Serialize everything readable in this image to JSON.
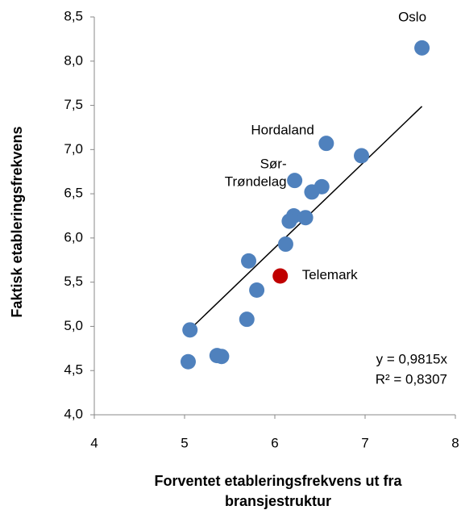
{
  "chart_data": {
    "type": "scatter",
    "x_label": "Forventet etableringsfrekvens ut fra\nbransjestruktur",
    "y_label": "Faktisk etableringsfrekvens",
    "x": [
      7.63,
      6.57,
      6.96,
      6.22,
      6.52,
      6.41,
      6.21,
      6.16,
      6.34,
      6.12,
      5.71,
      6.06,
      5.8,
      5.69,
      5.06,
      5.36,
      5.41,
      5.04
    ],
    "values": [
      8.15,
      7.07,
      6.93,
      6.65,
      6.58,
      6.52,
      6.25,
      6.19,
      6.23,
      5.93,
      5.74,
      5.57,
      5.41,
      5.08,
      4.96,
      4.67,
      4.66,
      4.6
    ],
    "labels": [
      "Oslo",
      "Hordaland",
      null,
      "Sør-\nTrøndelag",
      null,
      null,
      null,
      null,
      null,
      null,
      null,
      "Telemark",
      null,
      null,
      null,
      null,
      null,
      null
    ],
    "colors": [
      "#4f81bd",
      "#4f81bd",
      "#4f81bd",
      "#4f81bd",
      "#4f81bd",
      "#4f81bd",
      "#4f81bd",
      "#4f81bd",
      "#4f81bd",
      "#4f81bd",
      "#4f81bd",
      "#c00000",
      "#4f81bd",
      "#4f81bd",
      "#4f81bd",
      "#4f81bd",
      "#4f81bd",
      "#4f81bd"
    ],
    "trendline": {
      "slope": 0.9815,
      "x_range": [
        5.06,
        7.63
      ],
      "equation": "y = 0,9815x",
      "r2": "R² = 0,8307"
    },
    "xlim": [
      4,
      8
    ],
    "xticks": [
      4,
      5,
      6,
      7,
      8
    ],
    "ylim": [
      4,
      8.5
    ],
    "yticks": [
      {
        "value": 4,
        "label": "4,0"
      },
      {
        "value": 4.5,
        "label": "4,5"
      },
      {
        "value": 5,
        "label": "5,0"
      },
      {
        "value": 5.5,
        "label": "5,5"
      },
      {
        "value": 6,
        "label": "6,0"
      },
      {
        "value": 6.5,
        "label": "6,5"
      },
      {
        "value": 7,
        "label": "7,0"
      },
      {
        "value": 7.5,
        "label": "7,5"
      },
      {
        "value": 8,
        "label": "8,0"
      },
      {
        "value": 8.5,
        "label": "8,5"
      }
    ],
    "grid": false
  }
}
